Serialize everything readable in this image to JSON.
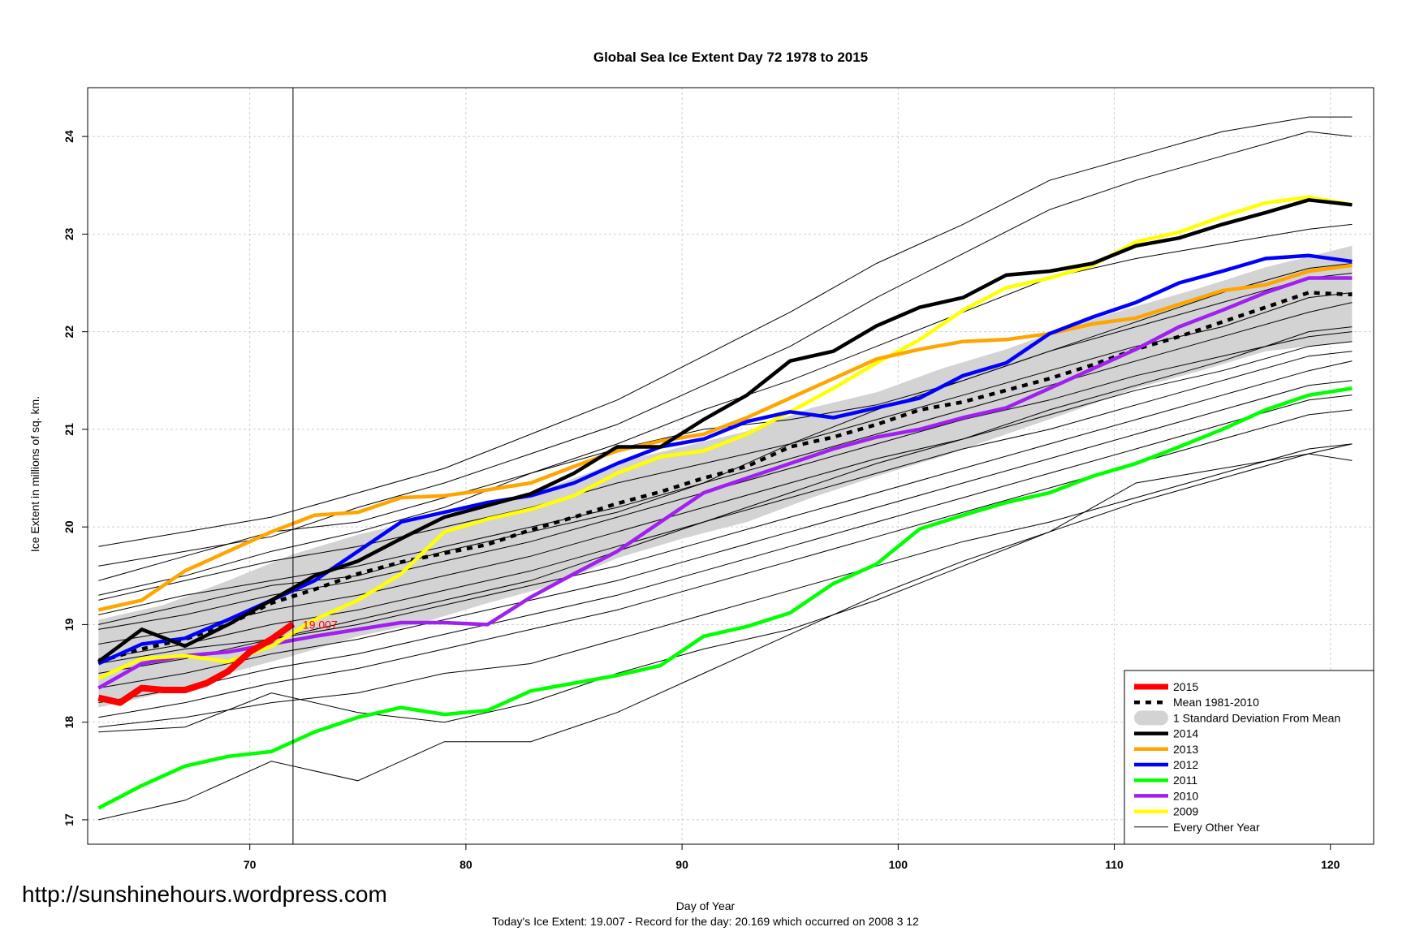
{
  "watermark": "http://sunshinehours.wordpress.com",
  "footer": {
    "line1": "Day of Year",
    "line2": "Today's Ice Extent: 19.007  - Record for the day: 20.169 which occurred on 2008 3 12"
  },
  "chart_data": {
    "type": "line",
    "title": "Global Sea Ice Extent Day 72 1978 to 2015",
    "xlabel": "",
    "ylabel": "Ice Extent in millions of sq. km.",
    "xlim": [
      62.5,
      122
    ],
    "ylim": [
      16.75,
      24.5
    ],
    "xticks": [
      70,
      80,
      90,
      100,
      110,
      120
    ],
    "yticks": [
      17,
      18,
      19,
      20,
      21,
      22,
      23,
      24
    ],
    "grid": true,
    "current_day": 72,
    "current_value_label": "19.007",
    "legend_position": "bottom-right",
    "colors": {
      "2015": "#ff0000",
      "mean": "#000000",
      "sd_band": "#d3d3d3",
      "2014": "#000000",
      "2013": "#ffa500",
      "2012": "#0000ff",
      "2011": "#00ff00",
      "2010": "#a020f0",
      "2009": "#ffff00",
      "other": "#000000"
    },
    "legend": [
      {
        "label": "2015",
        "style": "thick",
        "color": "#ff0000"
      },
      {
        "label": "Mean 1981-2010",
        "style": "dashed",
        "color": "#000000"
      },
      {
        "label": "1 Standard Deviation From Mean",
        "style": "band",
        "color": "#d3d3d3"
      },
      {
        "label": "2014",
        "style": "line",
        "color": "#000000"
      },
      {
        "label": "2013",
        "style": "line",
        "color": "#ffa500"
      },
      {
        "label": "2012",
        "style": "line",
        "color": "#0000ff"
      },
      {
        "label": "2011",
        "style": "line",
        "color": "#00ff00"
      },
      {
        "label": "2010",
        "style": "line",
        "color": "#a020f0"
      },
      {
        "label": "2009",
        "style": "line",
        "color": "#ffff00"
      },
      {
        "label": "Every Other Year",
        "style": "thin",
        "color": "#000000"
      }
    ],
    "mean": {
      "x": [
        63,
        65,
        67,
        69,
        71,
        73,
        75,
        77,
        79,
        81,
        83,
        85,
        87,
        89,
        91,
        93,
        95,
        97,
        99,
        101,
        103,
        105,
        107,
        109,
        111,
        113,
        115,
        117,
        119,
        121
      ],
      "y": [
        18.62,
        18.75,
        18.85,
        19.0,
        19.22,
        19.36,
        19.52,
        19.64,
        19.73,
        19.82,
        19.97,
        20.1,
        20.24,
        20.36,
        20.5,
        20.62,
        20.82,
        20.92,
        21.05,
        21.2,
        21.28,
        21.4,
        21.52,
        21.66,
        21.82,
        21.95,
        22.1,
        22.25,
        22.4,
        22.38
      ]
    },
    "sd_band": {
      "x": [
        63,
        66,
        69,
        72,
        75,
        78,
        81,
        84,
        87,
        90,
        93,
        96,
        99,
        102,
        105,
        108,
        111,
        114,
        117,
        121
      ],
      "upper": [
        19.05,
        19.2,
        19.45,
        19.72,
        19.92,
        20.08,
        20.2,
        20.42,
        20.66,
        20.82,
        20.98,
        21.22,
        21.38,
        21.62,
        21.82,
        22.06,
        22.26,
        22.45,
        22.66,
        22.88
      ],
      "lower": [
        18.15,
        18.3,
        18.5,
        18.68,
        18.88,
        19.02,
        19.22,
        19.4,
        19.68,
        19.88,
        20.05,
        20.3,
        20.52,
        20.72,
        20.95,
        21.18,
        21.42,
        21.6,
        21.8,
        21.9
      ]
    },
    "series": [
      {
        "name": "2015",
        "color": "#ff0000",
        "x": [
          63,
          64,
          65,
          66,
          67,
          68,
          69,
          70,
          71,
          72
        ],
        "y": [
          18.25,
          18.2,
          18.35,
          18.33,
          18.33,
          18.4,
          18.52,
          18.72,
          18.85,
          19.007
        ]
      },
      {
        "name": "2014",
        "color": "#000000",
        "x": [
          63,
          65,
          67,
          69,
          71,
          73,
          75,
          77,
          79,
          81,
          83,
          85,
          87,
          89,
          91,
          93,
          95,
          97,
          99,
          101,
          103,
          105,
          107,
          109,
          111,
          113,
          115,
          117,
          119,
          121
        ],
        "y": [
          18.62,
          18.95,
          18.78,
          19.0,
          19.25,
          19.5,
          19.65,
          19.88,
          20.1,
          20.22,
          20.34,
          20.55,
          20.82,
          20.82,
          21.1,
          21.35,
          21.7,
          21.8,
          22.06,
          22.25,
          22.35,
          22.58,
          22.62,
          22.7,
          22.88,
          22.96,
          23.1,
          23.22,
          23.35,
          23.3
        ]
      },
      {
        "name": "2013",
        "color": "#ffa500",
        "x": [
          63,
          65,
          67,
          69,
          71,
          73,
          75,
          77,
          79,
          81,
          83,
          85,
          87,
          89,
          91,
          93,
          95,
          97,
          99,
          101,
          103,
          105,
          107,
          109,
          111,
          113,
          115,
          117,
          119,
          121
        ],
        "y": [
          19.15,
          19.25,
          19.55,
          19.75,
          19.95,
          20.12,
          20.15,
          20.3,
          20.32,
          20.38,
          20.45,
          20.62,
          20.78,
          20.88,
          20.95,
          21.12,
          21.32,
          21.52,
          21.72,
          21.82,
          21.9,
          21.92,
          21.98,
          22.08,
          22.14,
          22.28,
          22.42,
          22.48,
          22.62,
          22.68
        ]
      },
      {
        "name": "2012",
        "color": "#0000ff",
        "x": [
          63,
          65,
          67,
          69,
          71,
          73,
          75,
          77,
          79,
          81,
          83,
          85,
          87,
          89,
          91,
          93,
          95,
          97,
          99,
          101,
          103,
          105,
          107,
          109,
          111,
          113,
          115,
          117,
          119,
          121
        ],
        "y": [
          18.6,
          18.8,
          18.86,
          19.05,
          19.25,
          19.45,
          19.75,
          20.05,
          20.15,
          20.25,
          20.32,
          20.45,
          20.65,
          20.82,
          20.9,
          21.08,
          21.18,
          21.12,
          21.22,
          21.32,
          21.55,
          21.68,
          21.98,
          22.15,
          22.3,
          22.5,
          22.62,
          22.75,
          22.78,
          22.72
        ]
      },
      {
        "name": "2011",
        "color": "#00ff00",
        "x": [
          63,
          65,
          67,
          69,
          71,
          73,
          75,
          77,
          79,
          81,
          83,
          85,
          87,
          89,
          91,
          93,
          95,
          97,
          99,
          101,
          103,
          105,
          107,
          109,
          111,
          113,
          115,
          117,
          119,
          121
        ],
        "y": [
          17.12,
          17.35,
          17.55,
          17.65,
          17.7,
          17.9,
          18.05,
          18.15,
          18.08,
          18.12,
          18.32,
          18.4,
          18.48,
          18.58,
          18.88,
          18.98,
          19.12,
          19.42,
          19.62,
          19.98,
          20.12,
          20.25,
          20.35,
          20.52,
          20.65,
          20.82,
          21.0,
          21.2,
          21.35,
          21.42
        ]
      },
      {
        "name": "2010",
        "color": "#a020f0",
        "x": [
          63,
          65,
          67,
          69,
          71,
          73,
          75,
          77,
          79,
          81,
          83,
          85,
          87,
          89,
          91,
          93,
          95,
          97,
          99,
          101,
          103,
          105,
          107,
          109,
          111,
          113,
          115,
          117,
          119,
          121
        ],
        "y": [
          18.35,
          18.6,
          18.68,
          18.72,
          18.8,
          18.88,
          18.95,
          19.02,
          19.02,
          19.0,
          19.28,
          19.52,
          19.75,
          20.05,
          20.35,
          20.5,
          20.65,
          20.8,
          20.92,
          21.0,
          21.12,
          21.22,
          21.42,
          21.62,
          21.82,
          22.05,
          22.22,
          22.4,
          22.55,
          22.55
        ]
      },
      {
        "name": "2009",
        "color": "#ffff00",
        "x": [
          63,
          65,
          67,
          69,
          71,
          73,
          75,
          77,
          79,
          81,
          83,
          85,
          87,
          89,
          91,
          93,
          95,
          97,
          99,
          101,
          103,
          105,
          107,
          109,
          111,
          113,
          115,
          117,
          119,
          121
        ],
        "y": [
          18.45,
          18.65,
          18.68,
          18.62,
          18.78,
          19.05,
          19.25,
          19.52,
          19.95,
          20.08,
          20.18,
          20.32,
          20.55,
          20.72,
          20.78,
          20.95,
          21.18,
          21.42,
          21.68,
          21.92,
          22.22,
          22.45,
          22.55,
          22.68,
          22.92,
          23.02,
          23.18,
          23.32,
          23.38,
          23.3
        ]
      }
    ],
    "other_years": {
      "x": [
        63,
        67,
        71,
        75,
        79,
        83,
        87,
        91,
        95,
        99,
        103,
        107,
        111,
        115,
        119,
        121
      ],
      "lines": [
        [
          19.8,
          19.95,
          20.1,
          20.35,
          20.6,
          20.95,
          21.3,
          21.75,
          22.2,
          22.7,
          23.1,
          23.55,
          23.8,
          24.05,
          24.2,
          24.2
        ],
        [
          19.6,
          19.75,
          19.9,
          20.2,
          20.45,
          20.75,
          21.05,
          21.45,
          21.85,
          22.35,
          22.8,
          23.25,
          23.55,
          23.8,
          24.05,
          24.0
        ],
        [
          19.45,
          19.7,
          19.95,
          20.05,
          20.3,
          20.55,
          20.85,
          21.2,
          21.5,
          21.85,
          22.2,
          22.55,
          22.75,
          22.9,
          23.05,
          23.1
        ],
        [
          19.25,
          19.45,
          19.65,
          19.8,
          20.0,
          20.2,
          20.45,
          20.65,
          20.85,
          21.1,
          21.35,
          21.6,
          21.85,
          22.05,
          22.35,
          22.4
        ],
        [
          19.1,
          19.3,
          19.45,
          19.6,
          19.8,
          20.0,
          20.2,
          20.45,
          20.7,
          20.95,
          21.2,
          21.45,
          21.7,
          21.95,
          22.2,
          22.3
        ],
        [
          18.95,
          19.1,
          19.3,
          19.45,
          19.65,
          19.85,
          20.1,
          20.35,
          20.6,
          20.85,
          21.1,
          21.3,
          21.55,
          21.75,
          21.95,
          22.0
        ],
        [
          18.8,
          18.95,
          19.15,
          19.3,
          19.5,
          19.7,
          19.95,
          20.2,
          20.45,
          20.7,
          20.9,
          21.15,
          21.4,
          21.6,
          21.85,
          21.9
        ],
        [
          18.65,
          18.8,
          19.0,
          19.15,
          19.35,
          19.55,
          19.8,
          20.05,
          20.3,
          20.55,
          20.8,
          21.0,
          21.25,
          21.5,
          21.75,
          21.8
        ],
        [
          18.5,
          18.65,
          18.85,
          19.0,
          19.2,
          19.4,
          19.6,
          19.85,
          20.1,
          20.35,
          20.6,
          20.85,
          21.1,
          21.35,
          21.6,
          21.7
        ],
        [
          18.35,
          18.5,
          18.7,
          18.85,
          19.05,
          19.25,
          19.45,
          19.7,
          19.95,
          20.2,
          20.45,
          20.7,
          20.95,
          21.2,
          21.45,
          21.5
        ],
        [
          18.2,
          18.35,
          18.55,
          18.7,
          18.9,
          19.1,
          19.3,
          19.55,
          19.8,
          20.05,
          20.3,
          20.55,
          20.8,
          21.05,
          21.3,
          21.35
        ],
        [
          18.05,
          18.2,
          18.4,
          18.55,
          18.75,
          18.95,
          19.15,
          19.4,
          19.65,
          19.9,
          20.15,
          20.4,
          20.65,
          20.9,
          21.15,
          21.2
        ],
        [
          17.95,
          18.05,
          18.2,
          18.3,
          18.5,
          18.6,
          18.85,
          19.1,
          19.35,
          19.6,
          19.85,
          20.05,
          20.3,
          20.55,
          20.8,
          20.85
        ],
        [
          17.9,
          17.95,
          18.3,
          18.1,
          18.0,
          18.2,
          18.5,
          18.75,
          18.95,
          19.25,
          19.6,
          19.95,
          20.25,
          20.5,
          20.75,
          20.85
        ],
        [
          17.0,
          17.2,
          17.6,
          17.4,
          17.8,
          17.8,
          18.1,
          18.5,
          18.9,
          19.3,
          19.65,
          19.95,
          20.45,
          20.6,
          20.75,
          20.68
        ],
        [
          18.6,
          18.75,
          18.85,
          19.05,
          19.25,
          19.45,
          19.75,
          20.05,
          20.35,
          20.65,
          20.9,
          21.2,
          21.45,
          21.7,
          22.0,
          22.05
        ],
        [
          19.3,
          19.5,
          19.75,
          19.95,
          20.2,
          20.55,
          20.8,
          21.0,
          21.1,
          21.25,
          21.5,
          21.8,
          22.1,
          22.4,
          22.65,
          22.7
        ],
        [
          19.0,
          19.2,
          19.4,
          19.5,
          19.75,
          19.95,
          20.15,
          20.45,
          20.85,
          21.2,
          21.5,
          21.8,
          22.05,
          22.3,
          22.55,
          22.6
        ]
      ]
    }
  }
}
